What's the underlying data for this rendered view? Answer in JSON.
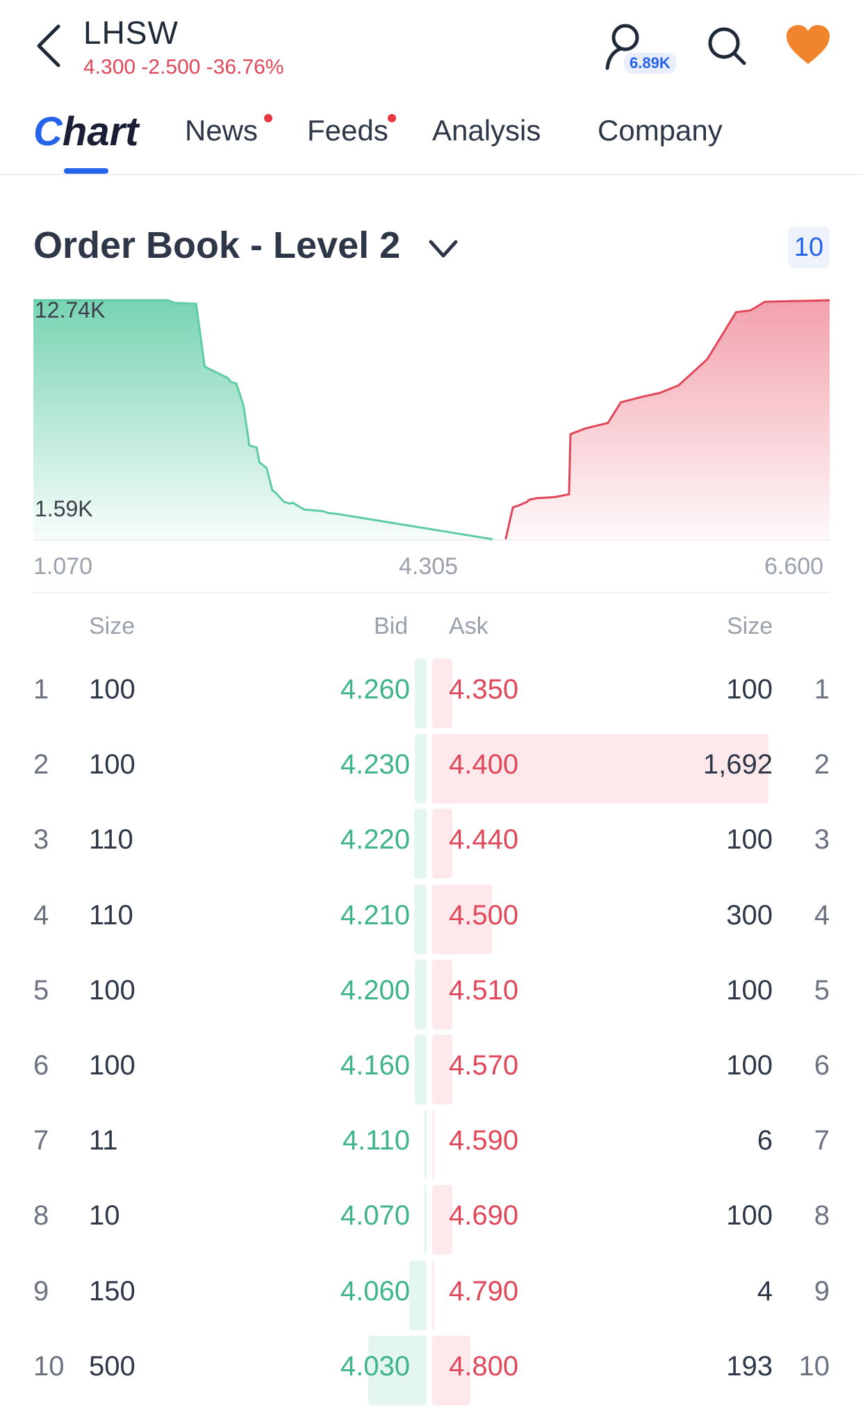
{
  "header": {
    "ticker": "LHSW",
    "quote": "4.300 -2.500 -36.76%",
    "user_badge": "6.89K",
    "icons": [
      "back-arrow-icon",
      "user-icon",
      "search-icon",
      "heart-icon"
    ],
    "accent": "#2563eb",
    "down_color": "#e0485a",
    "heart_color": "#f0852d"
  },
  "tabs": [
    {
      "label": "Chart",
      "active": true
    },
    {
      "label": "News",
      "dot": true
    },
    {
      "label": "Feeds",
      "dot": true
    },
    {
      "label": "Analysis"
    },
    {
      "label": "Company"
    }
  ],
  "orderbook": {
    "title": "Order Book - Level 2",
    "depth": "10"
  },
  "chart_data": {
    "type": "area",
    "y_labels": [
      "12.74K",
      "1.59K"
    ],
    "x_labels": [
      "1.070",
      "4.305",
      "6.600"
    ],
    "xlim": [
      1.07,
      6.6
    ],
    "bid_color": "#5fcca4",
    "ask_color": "#e0485a",
    "series": [
      {
        "name": "Bid",
        "x": [
          1.07,
          2.0,
          2.05,
          2.2,
          2.26,
          2.34,
          2.42,
          2.44,
          2.48,
          2.53,
          2.57,
          2.62,
          2.64,
          2.69,
          2.73,
          2.75,
          2.81,
          2.85,
          2.87,
          2.95,
          3.08,
          3.12,
          3.18,
          4.26
        ],
        "y": [
          12.74,
          12.74,
          12.6,
          12.55,
          9.2,
          8.9,
          8.6,
          8.4,
          8.3,
          7.1,
          5.0,
          4.9,
          4.1,
          3.8,
          2.6,
          2.5,
          2.0,
          1.9,
          1.95,
          1.59,
          1.5,
          1.4,
          1.35,
          0.0
        ]
      },
      {
        "name": "Ask",
        "x": [
          4.35,
          4.4,
          4.44,
          4.5,
          4.51,
          4.57,
          4.59,
          4.69,
          4.79,
          4.8,
          4.9,
          5.06,
          5.15,
          5.3,
          5.42,
          5.55,
          5.68,
          5.75,
          5.95,
          6.05,
          6.15,
          6.6
        ],
        "y": [
          0.0,
          1.7,
          1.8,
          2.0,
          2.1,
          2.2,
          2.2,
          2.25,
          2.4,
          5.6,
          5.9,
          6.2,
          7.3,
          7.6,
          7.8,
          8.2,
          9.1,
          9.6,
          12.1,
          12.2,
          12.66,
          12.74
        ]
      }
    ]
  },
  "table": {
    "headers": {
      "bid_size": "Size",
      "bid": "Bid",
      "ask": "Ask",
      "ask_size": "Size"
    },
    "rows": [
      {
        "level": "1",
        "bid_size": "100",
        "bid": "4.260",
        "ask": "4.350",
        "ask_size": "100",
        "bid_bar": 0.06,
        "ask_bar": 0.059
      },
      {
        "level": "2",
        "bid_size": "100",
        "bid": "4.230",
        "ask": "4.400",
        "ask_size": "1,692",
        "bid_bar": 0.06,
        "ask_bar": 1.0
      },
      {
        "level": "3",
        "bid_size": "110",
        "bid": "4.220",
        "ask": "4.440",
        "ask_size": "100",
        "bid_bar": 0.066,
        "ask_bar": 0.059
      },
      {
        "level": "4",
        "bid_size": "110",
        "bid": "4.210",
        "ask": "4.500",
        "ask_size": "300",
        "bid_bar": 0.066,
        "ask_bar": 0.177
      },
      {
        "level": "5",
        "bid_size": "100",
        "bid": "4.200",
        "ask": "4.510",
        "ask_size": "100",
        "bid_bar": 0.06,
        "ask_bar": 0.059
      },
      {
        "level": "6",
        "bid_size": "100",
        "bid": "4.160",
        "ask": "4.570",
        "ask_size": "100",
        "bid_bar": 0.06,
        "ask_bar": 0.059
      },
      {
        "level": "7",
        "bid_size": "11",
        "bid": "4.110",
        "ask": "4.590",
        "ask_size": "6",
        "bid_bar": 0.007,
        "ask_bar": 0.004
      },
      {
        "level": "8",
        "bid_size": "10",
        "bid": "4.070",
        "ask": "4.690",
        "ask_size": "100",
        "bid_bar": 0.006,
        "ask_bar": 0.059
      },
      {
        "level": "9",
        "bid_size": "150",
        "bid": "4.060",
        "ask": "4.790",
        "ask_size": "4",
        "bid_bar": 0.09,
        "ask_bar": 0.003
      },
      {
        "level": "10",
        "bid_size": "500",
        "bid": "4.030",
        "ask": "4.800",
        "ask_size": "193",
        "bid_bar": 0.3,
        "ask_bar": 0.114
      }
    ]
  }
}
